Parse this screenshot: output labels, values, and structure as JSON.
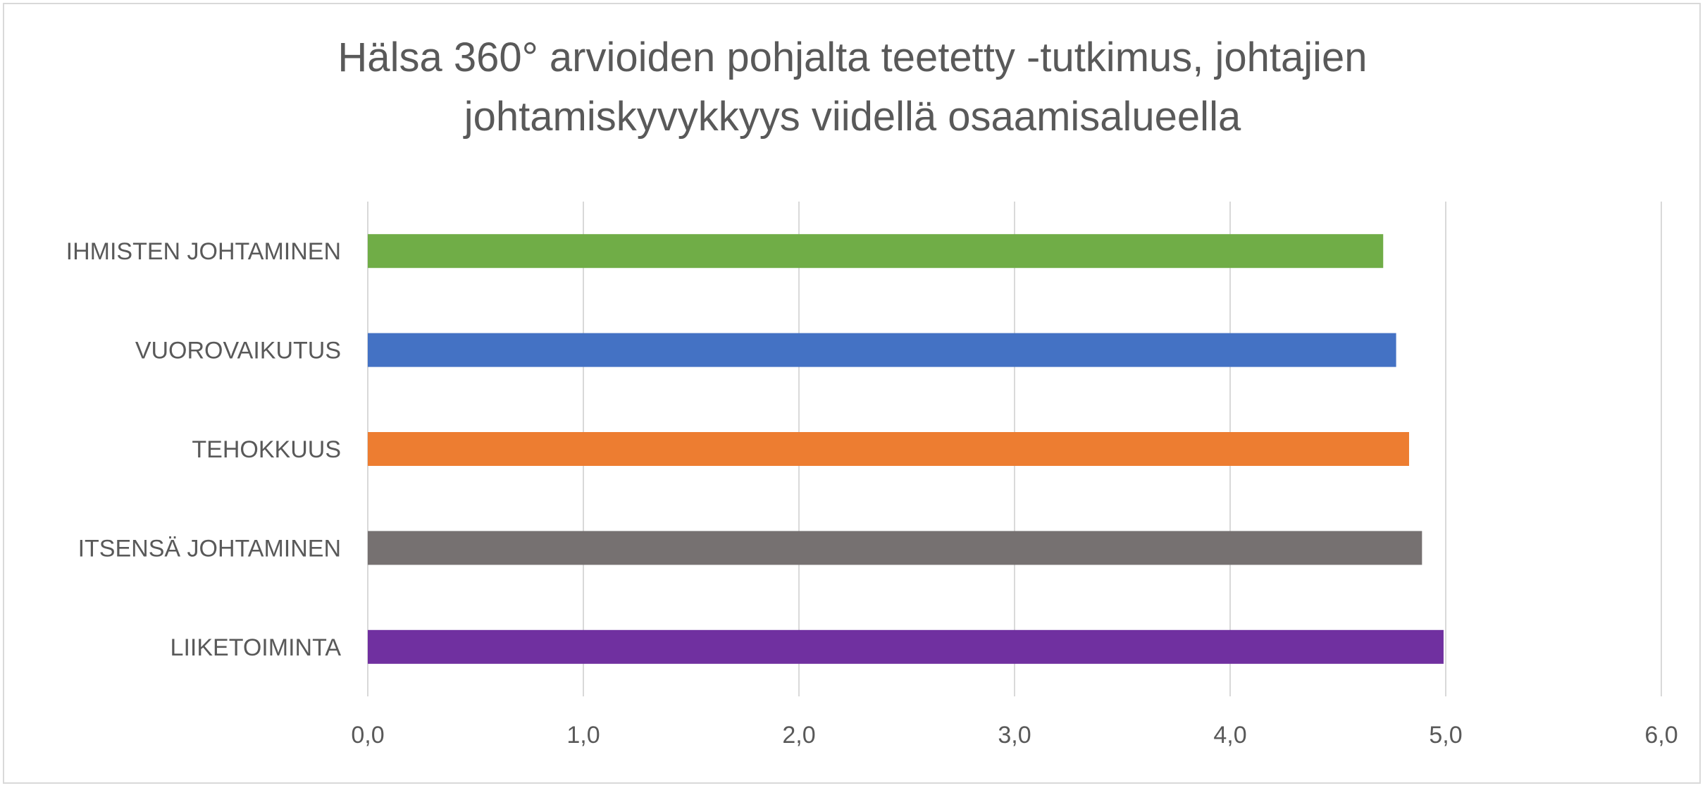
{
  "chart_data": {
    "type": "bar",
    "orientation": "horizontal",
    "title_lines": [
      "Hälsa 360° arvioiden pohjalta teetetty -tutkimus, johtajien",
      "johtamiskyvykkyys viidellä osaamisalueella"
    ],
    "categories": [
      "IHMISTEN JOHTAMINEN",
      "VUOROVAIKUTUS",
      "TEHOKKUUS",
      "ITSENSÄ JOHTAMINEN",
      "LIIKETOIMINTA"
    ],
    "values": [
      4.71,
      4.77,
      4.83,
      4.89,
      4.99
    ],
    "colors": [
      "#70ad47",
      "#4472c4",
      "#ed7d31",
      "#767171",
      "#7030a0"
    ],
    "xlim": [
      0,
      6
    ],
    "xticks": [
      "0,0",
      "1,0",
      "2,0",
      "3,0",
      "4,0",
      "5,0",
      "6,0"
    ],
    "xlabel": "",
    "ylabel": "",
    "grid": true,
    "legend": "none"
  }
}
